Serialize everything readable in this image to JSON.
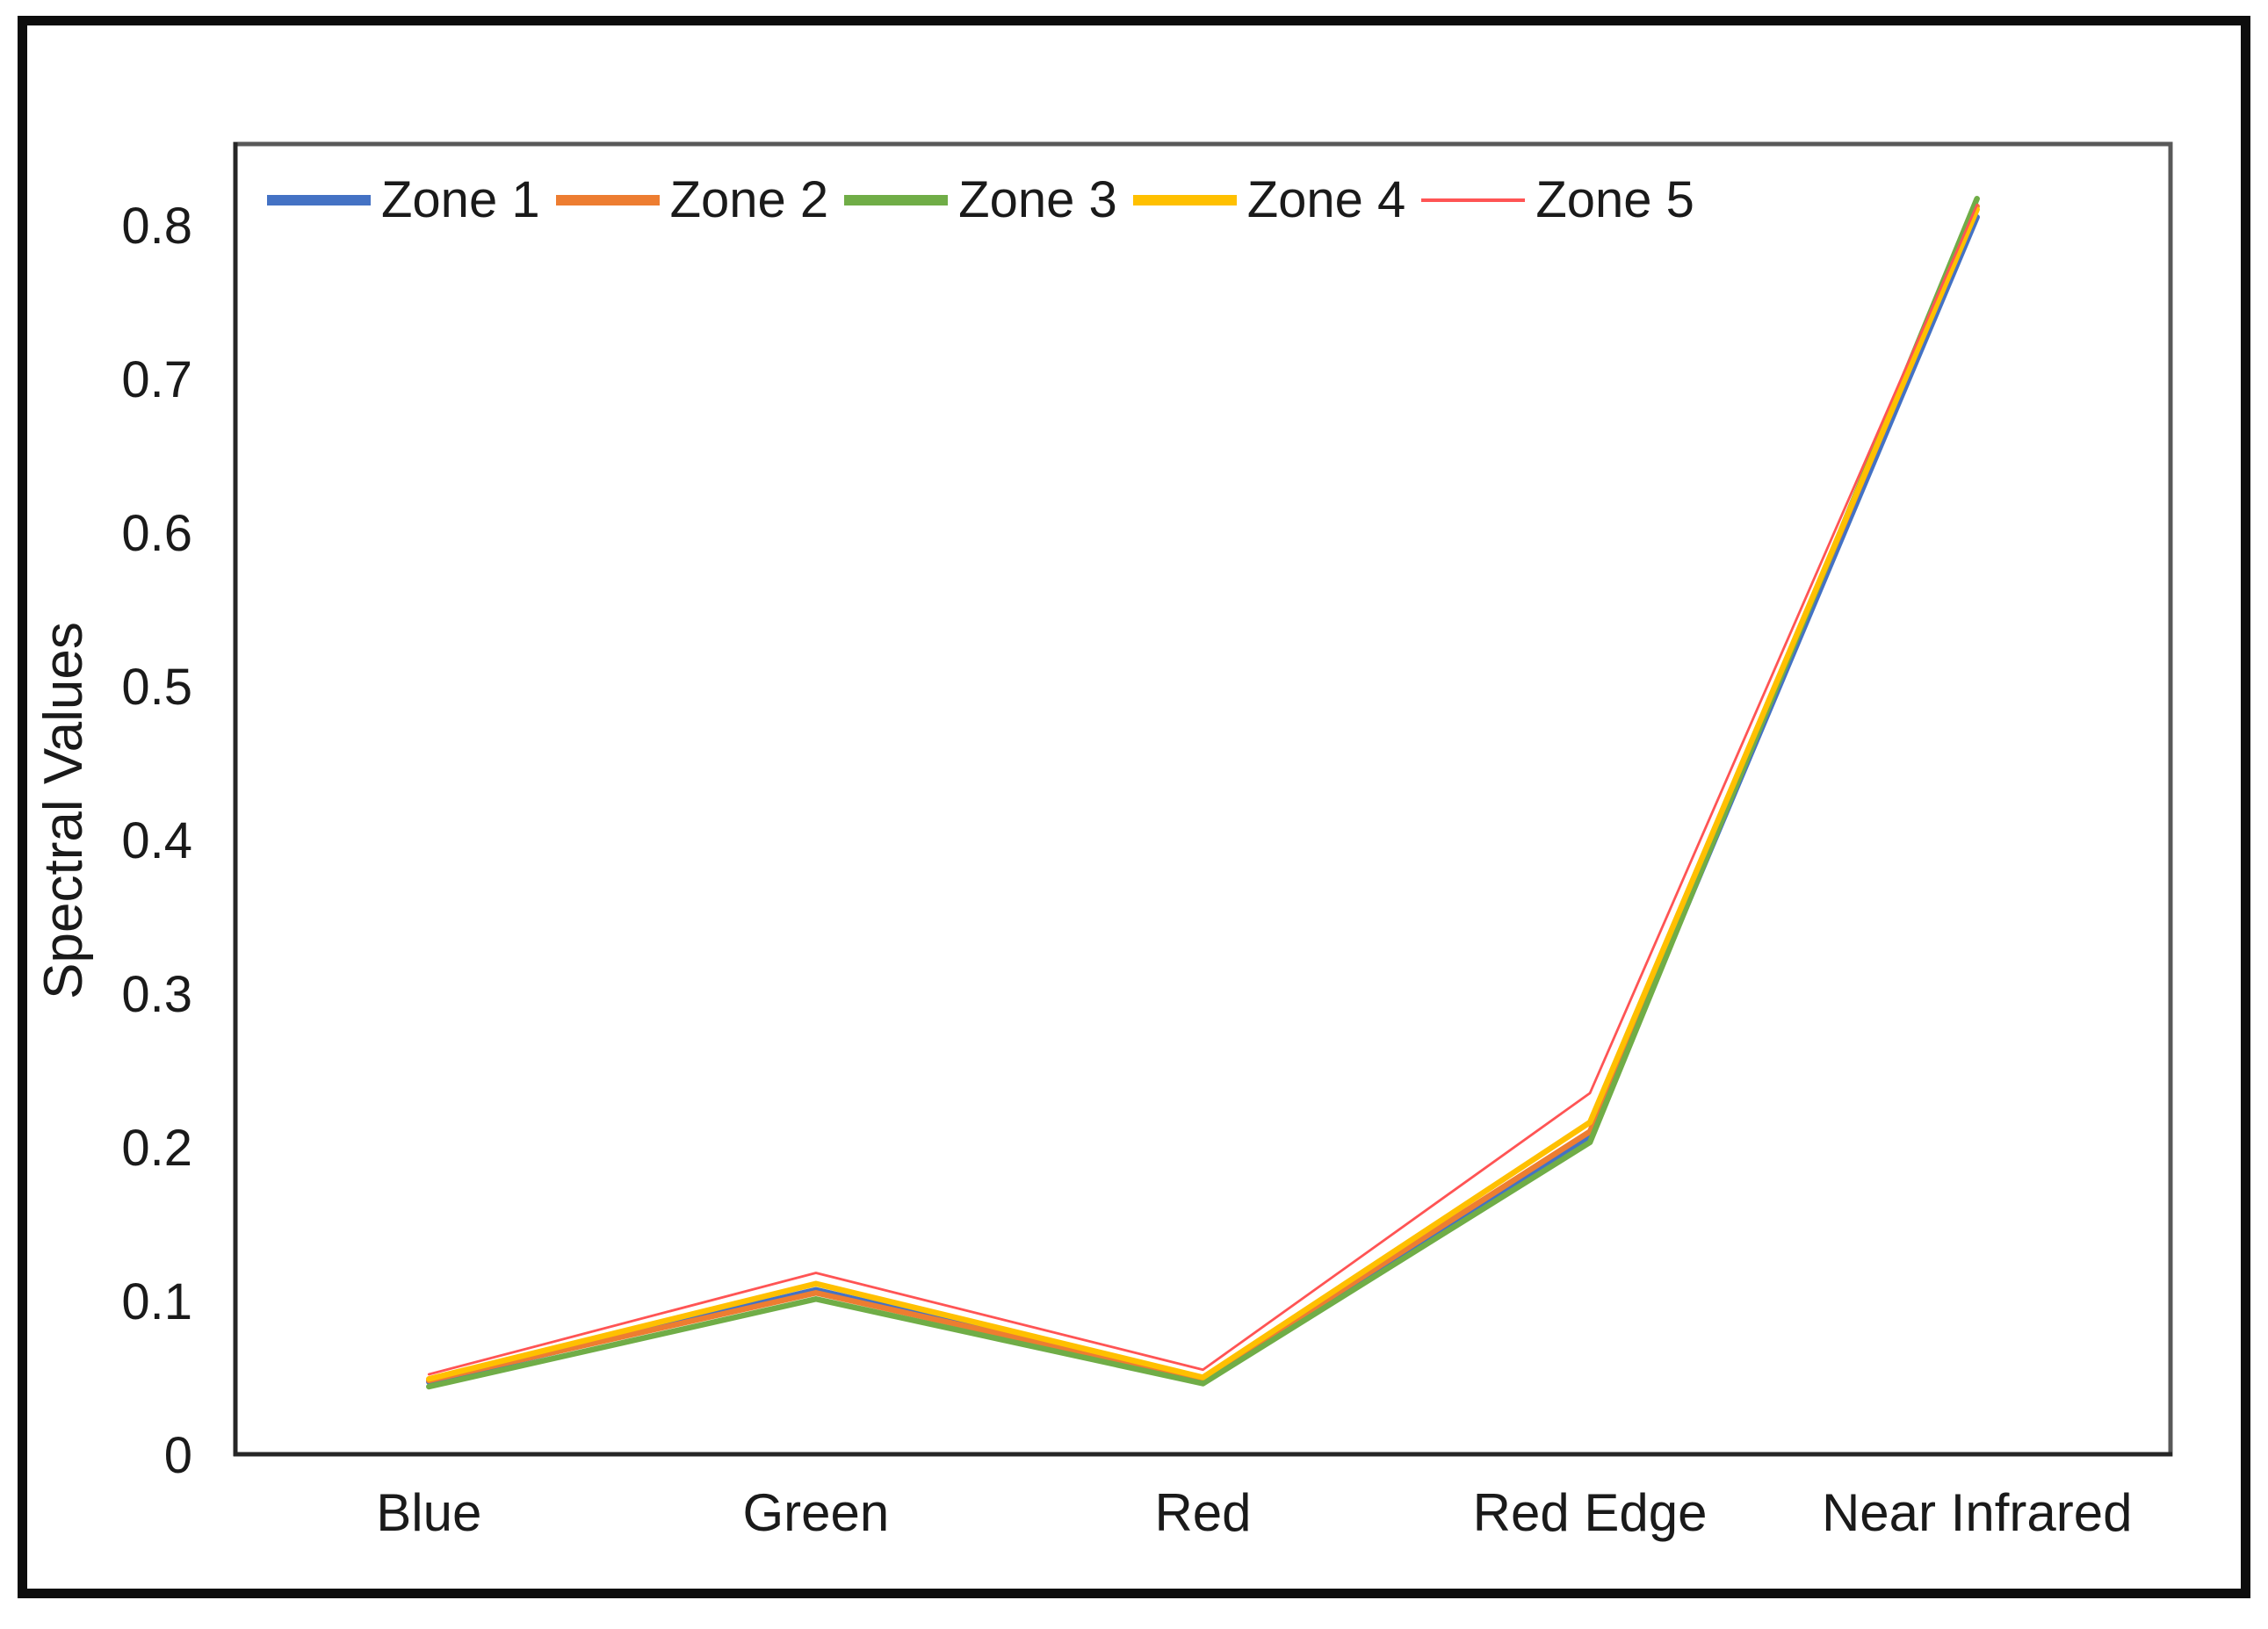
{
  "chart_data": {
    "type": "line",
    "title": "",
    "xlabel": "",
    "ylabel": "Spectral Values",
    "categories": [
      "Blue",
      "Green",
      "Red",
      "Red Edge",
      "Near Infrared"
    ],
    "y_ticks": [
      "0",
      "0.1",
      "0.2",
      "0.3",
      "0.4",
      "0.5",
      "0.6",
      "0.7",
      "0.8"
    ],
    "ylim": [
      0,
      0.853
    ],
    "grid": false,
    "legend_position": "top-left-horizontal",
    "series": [
      {
        "name": "Zone 1",
        "color": "#4472C4",
        "stroke_width": 6.5,
        "swatch_height": 12,
        "values": [
          0.047,
          0.107,
          0.048,
          0.207,
          0.805
        ]
      },
      {
        "name": "Zone 2",
        "color": "#ED7D31",
        "stroke_width": 6.5,
        "swatch_height": 12,
        "values": [
          0.048,
          0.105,
          0.049,
          0.21,
          0.812
        ]
      },
      {
        "name": "Zone 3",
        "color": "#70AD47",
        "stroke_width": 6.5,
        "swatch_height": 12,
        "values": [
          0.044,
          0.101,
          0.046,
          0.203,
          0.817
        ]
      },
      {
        "name": "Zone 4",
        "color": "#FFC000",
        "stroke_width": 6.5,
        "swatch_height": 12,
        "values": [
          0.049,
          0.111,
          0.05,
          0.216,
          0.81
        ]
      },
      {
        "name": "Zone 5",
        "color": "#FF5454",
        "stroke_width": 2.8,
        "swatch_height": 4,
        "values": [
          0.052,
          0.118,
          0.055,
          0.235,
          0.813
        ]
      }
    ]
  },
  "colors": {
    "background": "#ffffff",
    "outer_border": "#0d0d0d",
    "plot_border": "#595959",
    "axis_line": "#262626",
    "text": "#1a1a1a"
  }
}
